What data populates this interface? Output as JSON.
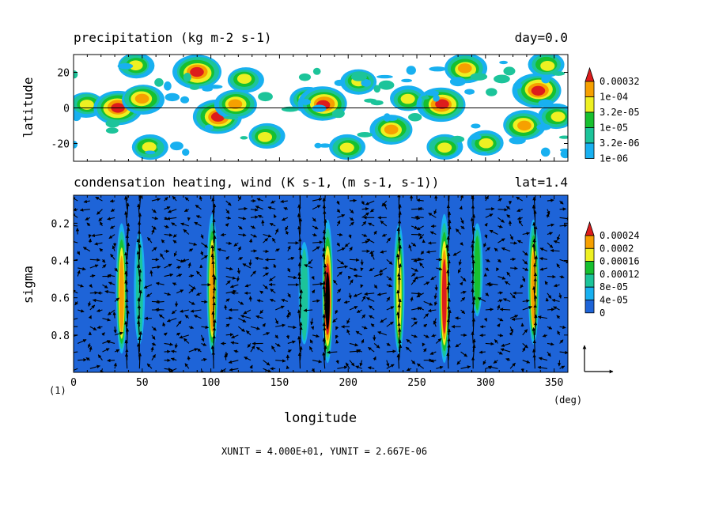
{
  "chart_data": [
    {
      "type": "heatmap",
      "title": "precipitation (kg m-2 s-1)",
      "annotation": "day=0.0",
      "ylabel": "latitude",
      "xlabel": "",
      "xlim": [
        0,
        360
      ],
      "ylim": [
        -30,
        30
      ],
      "yticks": [
        20,
        0,
        -20
      ],
      "ytick_labels": [
        "20",
        "0",
        "-20"
      ],
      "zero_line": 0,
      "colorbar": {
        "labels": [
          "0.00032",
          "1e-04",
          "3.2e-05",
          "1e-05",
          "3.2e-06",
          "1e-06"
        ],
        "colors": [
          "#dd1c1c",
          "#f6a000",
          "#eef022",
          "#17c02f",
          "#1cc49a",
          "#18b0f0"
        ]
      },
      "blobs": [
        {
          "lon": 10,
          "lat": 2,
          "level": 3
        },
        {
          "lon": 32,
          "lat": 0,
          "level": 5
        },
        {
          "lon": 45,
          "lat": 24,
          "level": 3
        },
        {
          "lon": 50,
          "lat": 5,
          "level": 4
        },
        {
          "lon": 55,
          "lat": -22,
          "level": 3
        },
        {
          "lon": 90,
          "lat": 20,
          "level": 5
        },
        {
          "lon": 105,
          "lat": -5,
          "level": 5
        },
        {
          "lon": 118,
          "lat": 2,
          "level": 4
        },
        {
          "lon": 125,
          "lat": 16,
          "level": 3
        },
        {
          "lon": 140,
          "lat": -16,
          "level": 3
        },
        {
          "lon": 170,
          "lat": 5,
          "level": 3
        },
        {
          "lon": 182,
          "lat": 2,
          "level": 5
        },
        {
          "lon": 200,
          "lat": -22,
          "level": 3
        },
        {
          "lon": 208,
          "lat": 15,
          "level": 3
        },
        {
          "lon": 232,
          "lat": -12,
          "level": 4
        },
        {
          "lon": 243,
          "lat": 5,
          "level": 3
        },
        {
          "lon": 268,
          "lat": 2,
          "level": 5
        },
        {
          "lon": 270,
          "lat": -22,
          "level": 3
        },
        {
          "lon": 285,
          "lat": 22,
          "level": 4
        },
        {
          "lon": 300,
          "lat": -20,
          "level": 3
        },
        {
          "lon": 328,
          "lat": -10,
          "level": 4
        },
        {
          "lon": 338,
          "lat": 10,
          "level": 5
        },
        {
          "lon": 345,
          "lat": 24,
          "level": 3
        },
        {
          "lon": 352,
          "lat": -5,
          "level": 3
        }
      ]
    },
    {
      "type": "heatmap",
      "title": "condensation heating, wind (K s-1, (m s-1, s-1))",
      "annotation": "lat=1.4",
      "xlabel": "longitude",
      "ylabel": "sigma",
      "xlim": [
        0,
        360
      ],
      "ylim": [
        1.0,
        0.05
      ],
      "xticks": [
        0,
        50,
        100,
        150,
        200,
        250,
        300,
        350
      ],
      "xtick_labels": [
        "0",
        "50",
        "100",
        "150",
        "200",
        "250",
        "300",
        "350"
      ],
      "yticks": [
        0.2,
        0.4,
        0.6,
        0.8
      ],
      "ytick_labels": [
        "0.2",
        "0.4",
        "0.6",
        "0.8"
      ],
      "x_unit_label": "(deg)",
      "corner_label": "(1)",
      "colorbar": {
        "labels": [
          "0.00024",
          "0.0002",
          "0.00016",
          "0.00012",
          "8e-05",
          "4e-05",
          "0"
        ],
        "colors": [
          "#dd1c1c",
          "#f6a000",
          "#eef022",
          "#17c02f",
          "#1cc49a",
          "#18b0f0",
          "#1e64d8"
        ]
      },
      "heating_columns": [
        {
          "lon": 35,
          "sigma_top": 0.2,
          "sigma_bottom": 0.9,
          "level": 4
        },
        {
          "lon": 48,
          "sigma_top": 0.25,
          "sigma_bottom": 0.85,
          "level": 1
        },
        {
          "lon": 101,
          "sigma_top": 0.15,
          "sigma_bottom": 0.9,
          "level": 4
        },
        {
          "lon": 168,
          "sigma_top": 0.3,
          "sigma_bottom": 0.85,
          "level": 1
        },
        {
          "lon": 185,
          "sigma_top": 0.18,
          "sigma_bottom": 0.95,
          "level": 6
        },
        {
          "lon": 237,
          "sigma_top": 0.2,
          "sigma_bottom": 0.9,
          "level": 3
        },
        {
          "lon": 270,
          "sigma_top": 0.15,
          "sigma_bottom": 0.95,
          "level": 5
        },
        {
          "lon": 294,
          "sigma_top": 0.2,
          "sigma_bottom": 0.7,
          "level": 2
        },
        {
          "lon": 335,
          "sigma_top": 0.18,
          "sigma_bottom": 0.85,
          "level": 4
        }
      ],
      "vector_reference": {
        "xunit_label": "XUNIT = 4.000E+01, YUNIT = 2.667E-06"
      }
    }
  ]
}
